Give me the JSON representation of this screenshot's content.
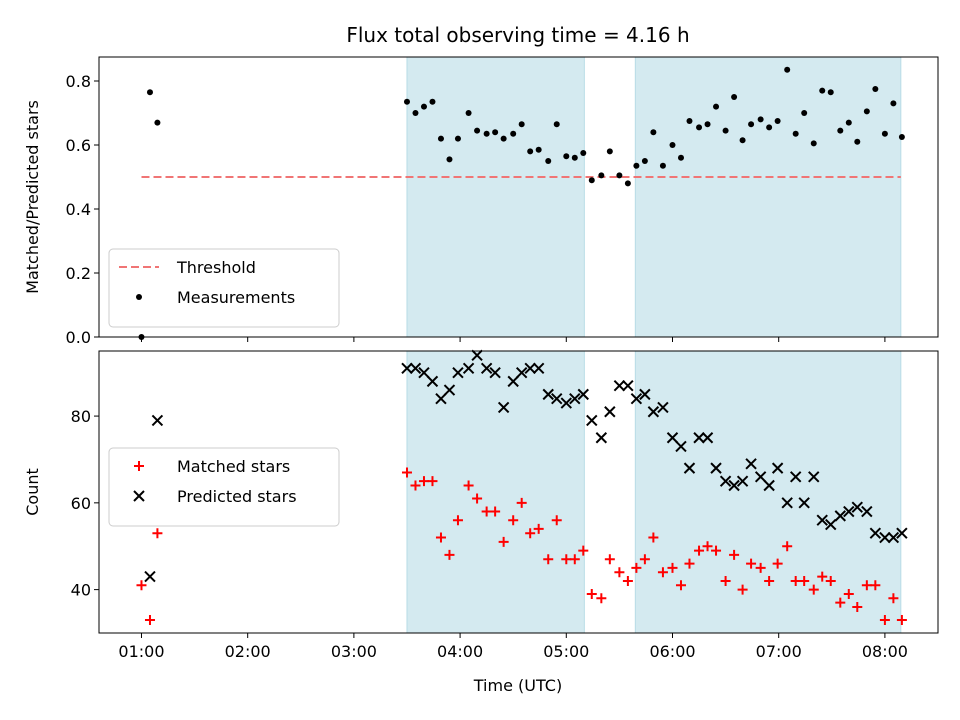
{
  "chart_data": {
    "type": "scatter",
    "title": "Flux total observing time = 4.16 h",
    "xlabel": "Time (UTC)",
    "x_unit": "hours (UTC)",
    "xlim": [
      0.6,
      8.5
    ],
    "x_ticks": [
      {
        "value": 1,
        "label": "01:00"
      },
      {
        "value": 2,
        "label": "02:00"
      },
      {
        "value": 3,
        "label": "03:00"
      },
      {
        "value": 4,
        "label": "04:00"
      },
      {
        "value": 5,
        "label": "05:00"
      },
      {
        "value": 6,
        "label": "06:00"
      },
      {
        "value": 7,
        "label": "07:00"
      },
      {
        "value": 8,
        "label": "08:00"
      }
    ],
    "shaded_intervals": [
      [
        3.5,
        5.17
      ],
      [
        5.65,
        8.15
      ]
    ],
    "shade_color": "#d4eaf0",
    "panels": [
      {
        "ylabel": "Matched/Predicted stars",
        "ylim": [
          0,
          0.875
        ],
        "y_ticks": [
          {
            "value": 0.0,
            "label": "0.0"
          },
          {
            "value": 0.2,
            "label": "0.2"
          },
          {
            "value": 0.4,
            "label": "0.4"
          },
          {
            "value": 0.6,
            "label": "0.6"
          },
          {
            "value": 0.8,
            "label": "0.8"
          }
        ],
        "legend": "lower left",
        "threshold": {
          "name": "Threshold",
          "y": 0.5,
          "x_range": [
            1.0,
            8.15
          ],
          "color": "#f07575"
        },
        "series": [
          {
            "name": "Measurements",
            "marker": "dot",
            "color": "#000000",
            "points": [
              [
                1.0,
                0.0
              ],
              [
                1.08,
                0.765
              ],
              [
                1.15,
                0.67
              ],
              [
                3.5,
                0.735
              ],
              [
                3.58,
                0.7
              ],
              [
                3.66,
                0.72
              ],
              [
                3.74,
                0.735
              ],
              [
                3.82,
                0.62
              ],
              [
                3.9,
                0.555
              ],
              [
                3.98,
                0.62
              ],
              [
                4.08,
                0.7
              ],
              [
                4.16,
                0.645
              ],
              [
                4.25,
                0.635
              ],
              [
                4.33,
                0.64
              ],
              [
                4.41,
                0.62
              ],
              [
                4.5,
                0.635
              ],
              [
                4.58,
                0.665
              ],
              [
                4.66,
                0.58
              ],
              [
                4.74,
                0.585
              ],
              [
                4.83,
                0.55
              ],
              [
                4.91,
                0.665
              ],
              [
                5.0,
                0.565
              ],
              [
                5.08,
                0.56
              ],
              [
                5.16,
                0.575
              ],
              [
                5.24,
                0.49
              ],
              [
                5.33,
                0.505
              ],
              [
                5.41,
                0.58
              ],
              [
                5.5,
                0.505
              ],
              [
                5.58,
                0.48
              ],
              [
                5.66,
                0.535
              ],
              [
                5.74,
                0.55
              ],
              [
                5.82,
                0.64
              ],
              [
                5.91,
                0.535
              ],
              [
                6.0,
                0.6
              ],
              [
                6.08,
                0.56
              ],
              [
                6.16,
                0.675
              ],
              [
                6.25,
                0.655
              ],
              [
                6.33,
                0.665
              ],
              [
                6.41,
                0.72
              ],
              [
                6.5,
                0.645
              ],
              [
                6.58,
                0.75
              ],
              [
                6.66,
                0.615
              ],
              [
                6.74,
                0.665
              ],
              [
                6.83,
                0.68
              ],
              [
                6.91,
                0.655
              ],
              [
                6.99,
                0.675
              ],
              [
                7.08,
                0.835
              ],
              [
                7.16,
                0.635
              ],
              [
                7.24,
                0.7
              ],
              [
                7.33,
                0.605
              ],
              [
                7.41,
                0.77
              ],
              [
                7.49,
                0.765
              ],
              [
                7.58,
                0.645
              ],
              [
                7.66,
                0.67
              ],
              [
                7.74,
                0.61
              ],
              [
                7.83,
                0.705
              ],
              [
                7.91,
                0.775
              ],
              [
                8.0,
                0.635
              ],
              [
                8.08,
                0.73
              ],
              [
                8.16,
                0.625
              ]
            ]
          }
        ]
      },
      {
        "ylabel": "Count",
        "ylim": [
          30,
          95
        ],
        "y_ticks": [
          {
            "value": 40,
            "label": "40"
          },
          {
            "value": 60,
            "label": "60"
          },
          {
            "value": 80,
            "label": "80"
          }
        ],
        "legend": "center left",
        "series": [
          {
            "name": "Matched stars",
            "marker": "plus",
            "color": "#ff0000",
            "points": [
              [
                1.0,
                41
              ],
              [
                1.08,
                33
              ],
              [
                1.15,
                53
              ],
              [
                3.5,
                67
              ],
              [
                3.58,
                64
              ],
              [
                3.66,
                65
              ],
              [
                3.74,
                65
              ],
              [
                3.82,
                52
              ],
              [
                3.9,
                48
              ],
              [
                3.98,
                56
              ],
              [
                4.08,
                64
              ],
              [
                4.16,
                61
              ],
              [
                4.25,
                58
              ],
              [
                4.33,
                58
              ],
              [
                4.41,
                51
              ],
              [
                4.5,
                56
              ],
              [
                4.58,
                60
              ],
              [
                4.66,
                53
              ],
              [
                4.74,
                54
              ],
              [
                4.83,
                47
              ],
              [
                4.91,
                56
              ],
              [
                5.0,
                47
              ],
              [
                5.08,
                47
              ],
              [
                5.16,
                49
              ],
              [
                5.24,
                39
              ],
              [
                5.33,
                38
              ],
              [
                5.41,
                47
              ],
              [
                5.5,
                44
              ],
              [
                5.58,
                42
              ],
              [
                5.66,
                45
              ],
              [
                5.74,
                47
              ],
              [
                5.82,
                52
              ],
              [
                5.91,
                44
              ],
              [
                6.0,
                45
              ],
              [
                6.08,
                41
              ],
              [
                6.16,
                46
              ],
              [
                6.25,
                49
              ],
              [
                6.33,
                50
              ],
              [
                6.41,
                49
              ],
              [
                6.5,
                42
              ],
              [
                6.58,
                48
              ],
              [
                6.66,
                40
              ],
              [
                6.74,
                46
              ],
              [
                6.83,
                45
              ],
              [
                6.91,
                42
              ],
              [
                6.99,
                46
              ],
              [
                7.08,
                50
              ],
              [
                7.16,
                42
              ],
              [
                7.24,
                42
              ],
              [
                7.33,
                40
              ],
              [
                7.41,
                43
              ],
              [
                7.49,
                42
              ],
              [
                7.58,
                37
              ],
              [
                7.66,
                39
              ],
              [
                7.74,
                36
              ],
              [
                7.83,
                41
              ],
              [
                7.91,
                41
              ],
              [
                8.0,
                33
              ],
              [
                8.08,
                38
              ],
              [
                8.16,
                33
              ]
            ]
          },
          {
            "name": "Predicted stars",
            "marker": "x",
            "color": "#000000",
            "points": [
              [
                1.08,
                43
              ],
              [
                1.15,
                79
              ],
              [
                3.5,
                91
              ],
              [
                3.58,
                91
              ],
              [
                3.66,
                90
              ],
              [
                3.74,
                88
              ],
              [
                3.82,
                84
              ],
              [
                3.9,
                86
              ],
              [
                3.98,
                90
              ],
              [
                4.08,
                91
              ],
              [
                4.16,
                94
              ],
              [
                4.25,
                91
              ],
              [
                4.33,
                90
              ],
              [
                4.41,
                82
              ],
              [
                4.5,
                88
              ],
              [
                4.58,
                90
              ],
              [
                4.66,
                91
              ],
              [
                4.74,
                91
              ],
              [
                4.83,
                85
              ],
              [
                4.91,
                84
              ],
              [
                5.0,
                83
              ],
              [
                5.08,
                84
              ],
              [
                5.16,
                85
              ],
              [
                5.24,
                79
              ],
              [
                5.33,
                75
              ],
              [
                5.41,
                81
              ],
              [
                5.5,
                87
              ],
              [
                5.58,
                87
              ],
              [
                5.66,
                84
              ],
              [
                5.74,
                85
              ],
              [
                5.82,
                81
              ],
              [
                5.91,
                82
              ],
              [
                6.0,
                75
              ],
              [
                6.08,
                73
              ],
              [
                6.16,
                68
              ],
              [
                6.25,
                75
              ],
              [
                6.33,
                75
              ],
              [
                6.41,
                68
              ],
              [
                6.5,
                65
              ],
              [
                6.58,
                64
              ],
              [
                6.66,
                65
              ],
              [
                6.74,
                69
              ],
              [
                6.83,
                66
              ],
              [
                6.91,
                64
              ],
              [
                6.99,
                68
              ],
              [
                7.08,
                60
              ],
              [
                7.16,
                66
              ],
              [
                7.24,
                60
              ],
              [
                7.33,
                66
              ],
              [
                7.41,
                56
              ],
              [
                7.49,
                55
              ],
              [
                7.58,
                57
              ],
              [
                7.66,
                58
              ],
              [
                7.74,
                59
              ],
              [
                7.83,
                58
              ],
              [
                7.91,
                53
              ],
              [
                8.0,
                52
              ],
              [
                8.08,
                52
              ],
              [
                8.16,
                53
              ]
            ]
          }
        ]
      }
    ]
  }
}
